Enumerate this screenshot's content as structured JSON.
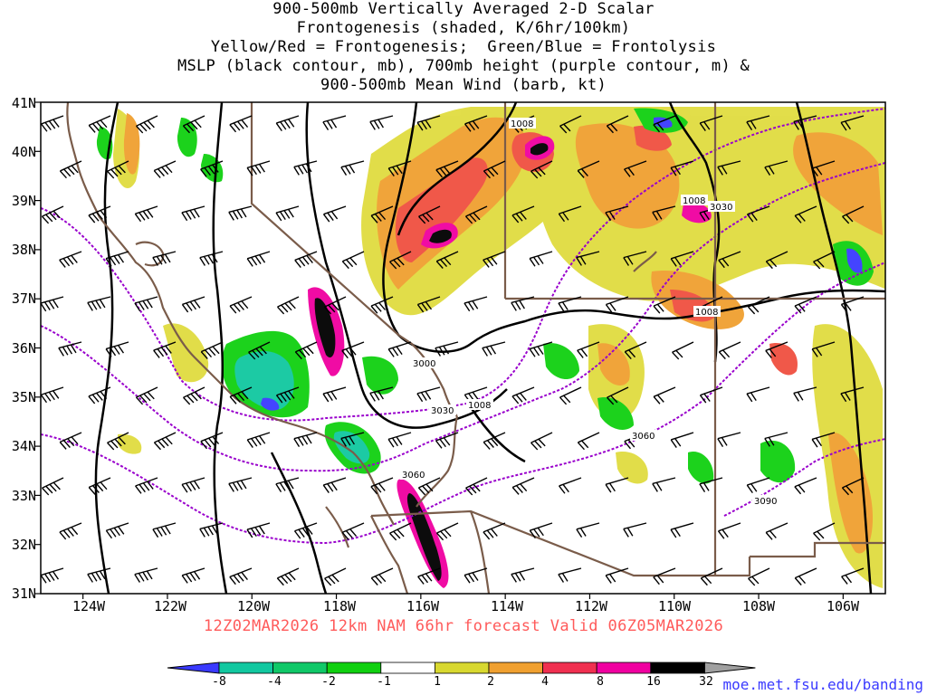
{
  "title_lines": [
    "900-500mb Vertically Averaged 2-D Scalar",
    "Frontogenesis (shaded, K/6hr/100km)",
    "Yellow/Red = Frontogenesis;  Green/Blue = Frontolysis",
    "MSLP (black contour, mb), 700mb height (purple contour, m) &",
    "900-500mb Mean Wind (barb, kt)"
  ],
  "valid_text": "12Z02MAR2026 12km NAM 66hr forecast Valid 06Z05MAR2026",
  "credit": "moe.met.fsu.edu/banding",
  "map": {
    "lat_labels": [
      "41N",
      "40N",
      "39N",
      "38N",
      "37N",
      "36N",
      "35N",
      "34N",
      "33N",
      "32N",
      "31N"
    ],
    "lon_labels": [
      "124W",
      "122W",
      "120W",
      "118W",
      "116W",
      "114W",
      "112W",
      "110W",
      "108W",
      "106W"
    ],
    "lat_range": [
      31,
      41
    ],
    "lon_range": [
      -125,
      -105
    ],
    "contour_labels": {
      "mslp": [
        "1008",
        "1008",
        "1008",
        "1008"
      ],
      "height_700mb": [
        "3030",
        "3000",
        "3030",
        "3060",
        "3060",
        "3090"
      ]
    },
    "colors": {
      "mslp_contour": "#000000",
      "height_contour": "#9900cc",
      "border": "#7a5c4a",
      "wind_barb": "#000000"
    }
  },
  "colorbar": {
    "labels": [
      "-8",
      "-4",
      "-2",
      "-1",
      "1",
      "2",
      "4",
      "8",
      "16",
      "32"
    ],
    "colors": [
      "#3a3aff",
      "#12c8a0",
      "#10d0a8",
      "#10c868",
      "#10d010",
      "#ffffff",
      "#d8d830",
      "#f0a030",
      "#f07030",
      "#f03050",
      "#f000a0",
      "#000000",
      "#a0a0a0"
    ]
  }
}
